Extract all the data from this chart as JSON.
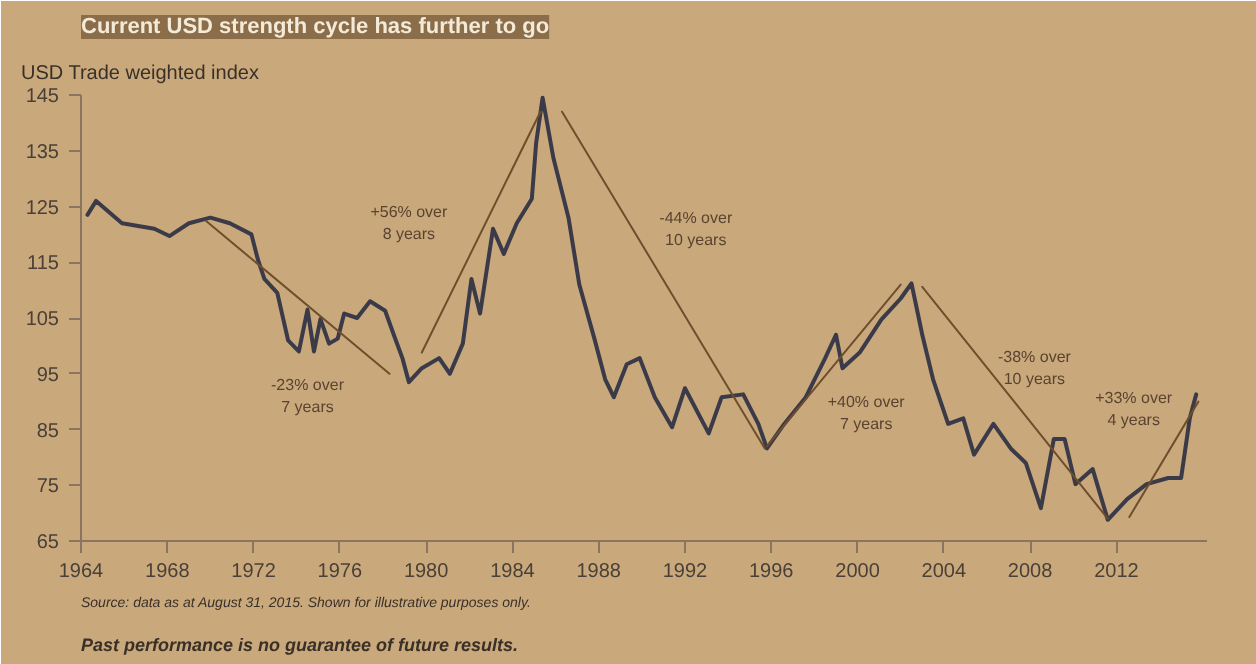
{
  "chart_data": {
    "type": "line",
    "title": "Current USD strength cycle has further to go",
    "ylabel": "USD Trade weighted index",
    "xlim": [
      1964,
      2016.2
    ],
    "ylim": [
      65,
      145
    ],
    "xticks": [
      1964,
      1968,
      1972,
      1976,
      1980,
      1984,
      1988,
      1992,
      1996,
      2000,
      2004,
      2008,
      2012
    ],
    "yticks": [
      65,
      75,
      85,
      95,
      105,
      115,
      125,
      135,
      145
    ],
    "series": [
      {
        "color": "#3b3a48",
        "x": [
          1964.3,
          1964.7,
          1965.9,
          1967.4,
          1968.1,
          1969,
          1970,
          1970.9,
          1971.9,
          1972.2,
          1972.5,
          1973.1,
          1973.6,
          1974.1,
          1974.5,
          1974.8,
          1975.1,
          1975.5,
          1975.9,
          1976.2,
          1976.8,
          1977.4,
          1978.1,
          1978.5,
          1978.9,
          1979.2,
          1979.8,
          1980.6,
          1981.1,
          1981.7,
          1982.1,
          1982.5,
          1983.1,
          1983.6,
          1984.2,
          1984.9,
          1985.1,
          1985.4,
          1985.9,
          1986.6,
          1987.1,
          1987.8,
          1988.3,
          1988.7,
          1989.3,
          1989.9,
          1990.6,
          1991.4,
          1992,
          1993.1,
          1993.7,
          1994.7,
          1995.4,
          1995.8,
          1996.6,
          1997.6,
          1998.5,
          1999,
          1999.3,
          2000.1,
          2001.1,
          2002,
          2002.5,
          2003,
          2003.5,
          2004.2,
          2004.9,
          2005.4,
          2006.3,
          2007.1,
          2007.8,
          2008.5,
          2009.1,
          2009.6,
          2010.1,
          2010.9,
          2011.6,
          2012.5,
          2013.4,
          2014.4,
          2015,
          2015.4,
          2015.7
        ],
        "values": [
          123.5,
          126,
          122,
          121,
          119.7,
          122,
          123,
          122,
          120,
          115.5,
          112,
          109.5,
          101,
          99,
          106.5,
          99,
          104.8,
          100.4,
          101.3,
          105.8,
          105,
          108,
          106.3,
          102,
          97.8,
          93.5,
          96,
          97.8,
          95,
          100.4,
          112,
          105.8,
          121,
          116.5,
          122,
          126.4,
          136.4,
          144.5,
          133.7,
          123,
          111,
          101.3,
          94,
          90.8,
          96.7,
          97.8,
          90.8,
          85.4,
          92.4,
          84.3,
          90.8,
          91.3,
          86,
          81.6,
          86,
          90.8,
          97.8,
          102,
          96,
          98.8,
          104.7,
          108.5,
          111.2,
          102,
          94,
          86,
          87,
          80.5,
          86,
          81.6,
          79,
          70.9,
          83.3,
          83.3,
          75.2,
          77.9,
          68.8,
          72.5,
          75.2,
          76.3,
          76.3,
          87,
          91.3
        ]
      },
      {
        "color": "#6e4e2c",
        "x": [
          1969.8,
          1978.3
        ],
        "values": [
          122.4,
          95
        ]
      },
      {
        "color": "#6e4e2c",
        "x": [
          1979.8,
          1985.3
        ],
        "values": [
          98.8,
          142
        ]
      },
      {
        "color": "#6e4e2c",
        "x": [
          1986.3,
          1995.7
        ],
        "values": [
          142,
          81.6
        ]
      },
      {
        "color": "#6e4e2c",
        "x": [
          1995.8,
          2002
        ],
        "values": [
          82,
          111
        ]
      },
      {
        "color": "#6e4e2c",
        "x": [
          2003,
          2011.6
        ],
        "values": [
          110.6,
          69
        ]
      },
      {
        "color": "#6e4e2c",
        "x": [
          2012.6,
          2015.8
        ],
        "values": [
          69.3,
          90
        ]
      }
    ],
    "annotations": [
      "-23% over\n7 years",
      "+56% over\n8 years",
      "-44% over\n10 years",
      "+40% over\n7 years",
      "-38% over\n10 years",
      "+33% over\n4 years",
      "Source: data as at August 31, 2015. Shown for illustrative purposes only.",
      "Past performance is no guarantee of future results."
    ]
  }
}
